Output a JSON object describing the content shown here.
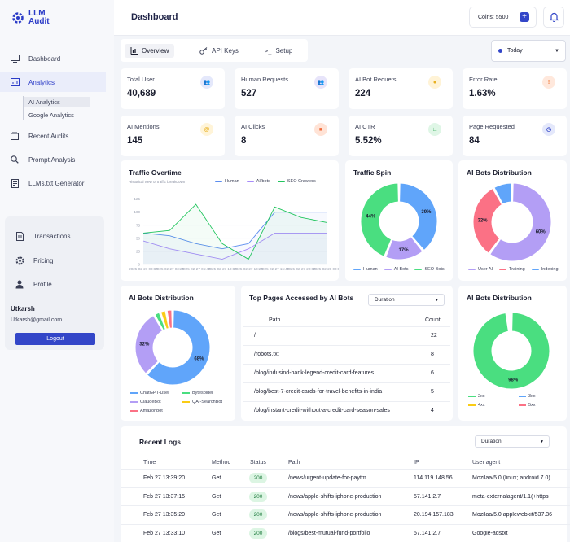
{
  "app": {
    "name_line1": "LLM",
    "name_line2": "Audit"
  },
  "sidebar": {
    "items": [
      {
        "label": "Dashboard",
        "icon": "dashboard-icon"
      },
      {
        "label": "Analytics",
        "icon": "analytics-icon"
      },
      {
        "label": "Recent Audits",
        "icon": "audits-icon"
      },
      {
        "label": "Prompt Analysis",
        "icon": "search-icon"
      },
      {
        "label": "LLMs.txt Generator",
        "icon": "document-icon"
      }
    ],
    "sub_items": [
      "AI Analytics",
      "Google Analytics"
    ],
    "card_items": [
      {
        "label": "Transactions",
        "icon": "document-icon"
      },
      {
        "label": "Pricing",
        "icon": "gear-icon"
      },
      {
        "label": "Profile",
        "icon": "user-icon"
      }
    ],
    "user": {
      "name": "Utkarsh",
      "email": "Utkarsh@gmail.com"
    },
    "logout_label": "Logout"
  },
  "header": {
    "title": "Dashboard",
    "coins": "Coins: 5500",
    "coins_add": "+"
  },
  "tabs": [
    "Overview",
    "API Keys",
    "Setup"
  ],
  "date_filter": "Today",
  "stats": [
    {
      "label": "Total User",
      "value": "40,689",
      "icon": "users-icon",
      "color": "#e4e8fb"
    },
    {
      "label": "Human Requests",
      "value": "527",
      "icon": "users-icon",
      "color": "#e7e4fa"
    },
    {
      "label": "AI Bot Requets",
      "value": "224",
      "icon": "bot-icon",
      "color": "#fff3d6"
    },
    {
      "label": "Error Rate",
      "value": "1.63%",
      "icon": "alert-icon",
      "color": "#ffe8dc"
    },
    {
      "label": "AI Mentions",
      "value": "145",
      "icon": "at-icon",
      "color": "#fff4d8"
    },
    {
      "label": "AI Clicks",
      "value": "8",
      "icon": "cube-icon",
      "color": "#ffe3d6"
    },
    {
      "label": "AI CTR",
      "value": "5.52%",
      "icon": "chart-icon",
      "color": "#dff6e6"
    },
    {
      "label": "Page Requested",
      "value": "84",
      "icon": "clock-icon",
      "color": "#e4e8fb"
    }
  ],
  "traffic_overtime": {
    "title": "Traffic Overtime",
    "subtitle": "Historical view of traffic breakdown",
    "legend": [
      "Human",
      "AI/bots",
      "SEO Crawlers"
    ]
  },
  "traffic_spin": {
    "title": "Traffic Spin",
    "legend": [
      "Human",
      "AI Bots",
      "SEO Bots"
    ]
  },
  "bots_distribution_1": {
    "title": "AI Bots Distribution",
    "legend": [
      "User AI",
      "Training",
      "Indexing"
    ]
  },
  "bots_distribution_2": {
    "title": "AI Bots Distribution",
    "legend": [
      "ChatGPT-User",
      "Bytespider",
      "ClaudeBot",
      "QAI-SearchBot",
      "Amazonbot"
    ]
  },
  "top_pages": {
    "title": "Top Pages Accessed by AI Bots",
    "filter": "Duration",
    "col_path": "Path",
    "col_count": "Count",
    "rows": [
      {
        "path": "/",
        "count": "22"
      },
      {
        "path": "/robots.txt",
        "count": "8"
      },
      {
        "path": "/blog/indusind-bank-legend-credit-card-features",
        "count": "6"
      },
      {
        "path": "/blog/best-7-credit-cards-for-travel-benefits-in-india",
        "count": "5"
      },
      {
        "path": "/blog/instant-credit-without-a-credit-card-season-sales",
        "count": "4"
      }
    ]
  },
  "status_distribution": {
    "title": "AI Bots Distribution",
    "legend": [
      "2xx",
      "3xx",
      "4xx",
      "5xx"
    ]
  },
  "recent_logs": {
    "title": "Recent Logs",
    "filter": "Duration",
    "columns": [
      "Time",
      "Method",
      "Status",
      "Path",
      "IP",
      "User agent"
    ],
    "rows": [
      {
        "time": "Feb 27 13:39:20",
        "method": "Get",
        "status": "200",
        "path": "/news/urgent-update-for-paytm",
        "ip": "114.119.148.56",
        "agent": "Mozilaa/5.0 (linux; android 7.0)"
      },
      {
        "time": "Feb 27 13:37:15",
        "method": "Get",
        "status": "200",
        "path": "/news/apple-shifts-iphone-production",
        "ip": "57.141.2.7",
        "agent": "meta-externalagent/1.1(+https"
      },
      {
        "time": "Feb 27 13:35:20",
        "method": "Get",
        "status": "200",
        "path": "/news/apple-shifts-iphone-production",
        "ip": "20.194.157.183",
        "agent": "Mozilaa/5.0 applewebkit/537.36"
      },
      {
        "time": "Feb 27 13:33:10",
        "method": "Get",
        "status": "200",
        "path": "/blogs/best-mutual-fund-portfolio",
        "ip": "57.141.2.7",
        "agent": "Google-adstxt"
      }
    ]
  },
  "chart_data": [
    {
      "type": "line",
      "title": "Traffic Overtime",
      "x": [
        "2025-02-27 00:00",
        "2025-02-27 03:20",
        "2025-02-27 06:40",
        "2025-02-27 10:00",
        "2025-02-27 13:20",
        "2025-02-27 16:40",
        "2025-02-27 20:00",
        "2025-02-28 00:00"
      ],
      "y_ticks": [
        "0",
        "25",
        "50",
        "75",
        "100",
        "125"
      ],
      "ylim": [
        0,
        140
      ],
      "series": [
        {
          "name": "Human",
          "color": "#5b8def",
          "values": [
            60,
            55,
            40,
            30,
            40,
            100,
            100,
            100
          ]
        },
        {
          "name": "AI/bots",
          "color": "#a78bfa",
          "values": [
            45,
            30,
            20,
            10,
            30,
            60,
            60,
            60
          ]
        },
        {
          "name": "SEO Crawlers",
          "color": "#22c55e",
          "values": [
            60,
            65,
            115,
            40,
            10,
            110,
            90,
            80
          ]
        }
      ]
    },
    {
      "type": "pie",
      "title": "Traffic Spin",
      "categories": [
        "Human",
        "AI Bots",
        "SEO Bots"
      ],
      "values": [
        39,
        17,
        44
      ],
      "colors": [
        "#60a5fa",
        "#b39ef5",
        "#4ade80"
      ]
    },
    {
      "type": "pie",
      "title": "AI Bots Distribution",
      "categories": [
        "User AI",
        "Training",
        "Indexing"
      ],
      "values": [
        60,
        32,
        8
      ],
      "colors": [
        "#b39ef5",
        "#fb7185",
        "#60a5fa"
      ]
    },
    {
      "type": "pie",
      "title": "AI Bots Distribution",
      "categories": [
        "ChatGPT-User",
        "ClaudeBot",
        "Bytespider",
        "QAI-SearchBot",
        "Amazonbot"
      ],
      "values": [
        68,
        32,
        3,
        3,
        3
      ],
      "colors": [
        "#60a5fa",
        "#b39ef5",
        "#4ade80",
        "#facc15",
        "#fb7185"
      ]
    },
    {
      "type": "pie",
      "title": "AI Bots Distribution",
      "categories": [
        "2xx",
        "3xx",
        "4xx",
        "5xx"
      ],
      "values": [
        98,
        0.7,
        0.7,
        0.6
      ],
      "colors": [
        "#4ade80",
        "#60a5fa",
        "#facc15",
        "#fb7185"
      ]
    }
  ]
}
